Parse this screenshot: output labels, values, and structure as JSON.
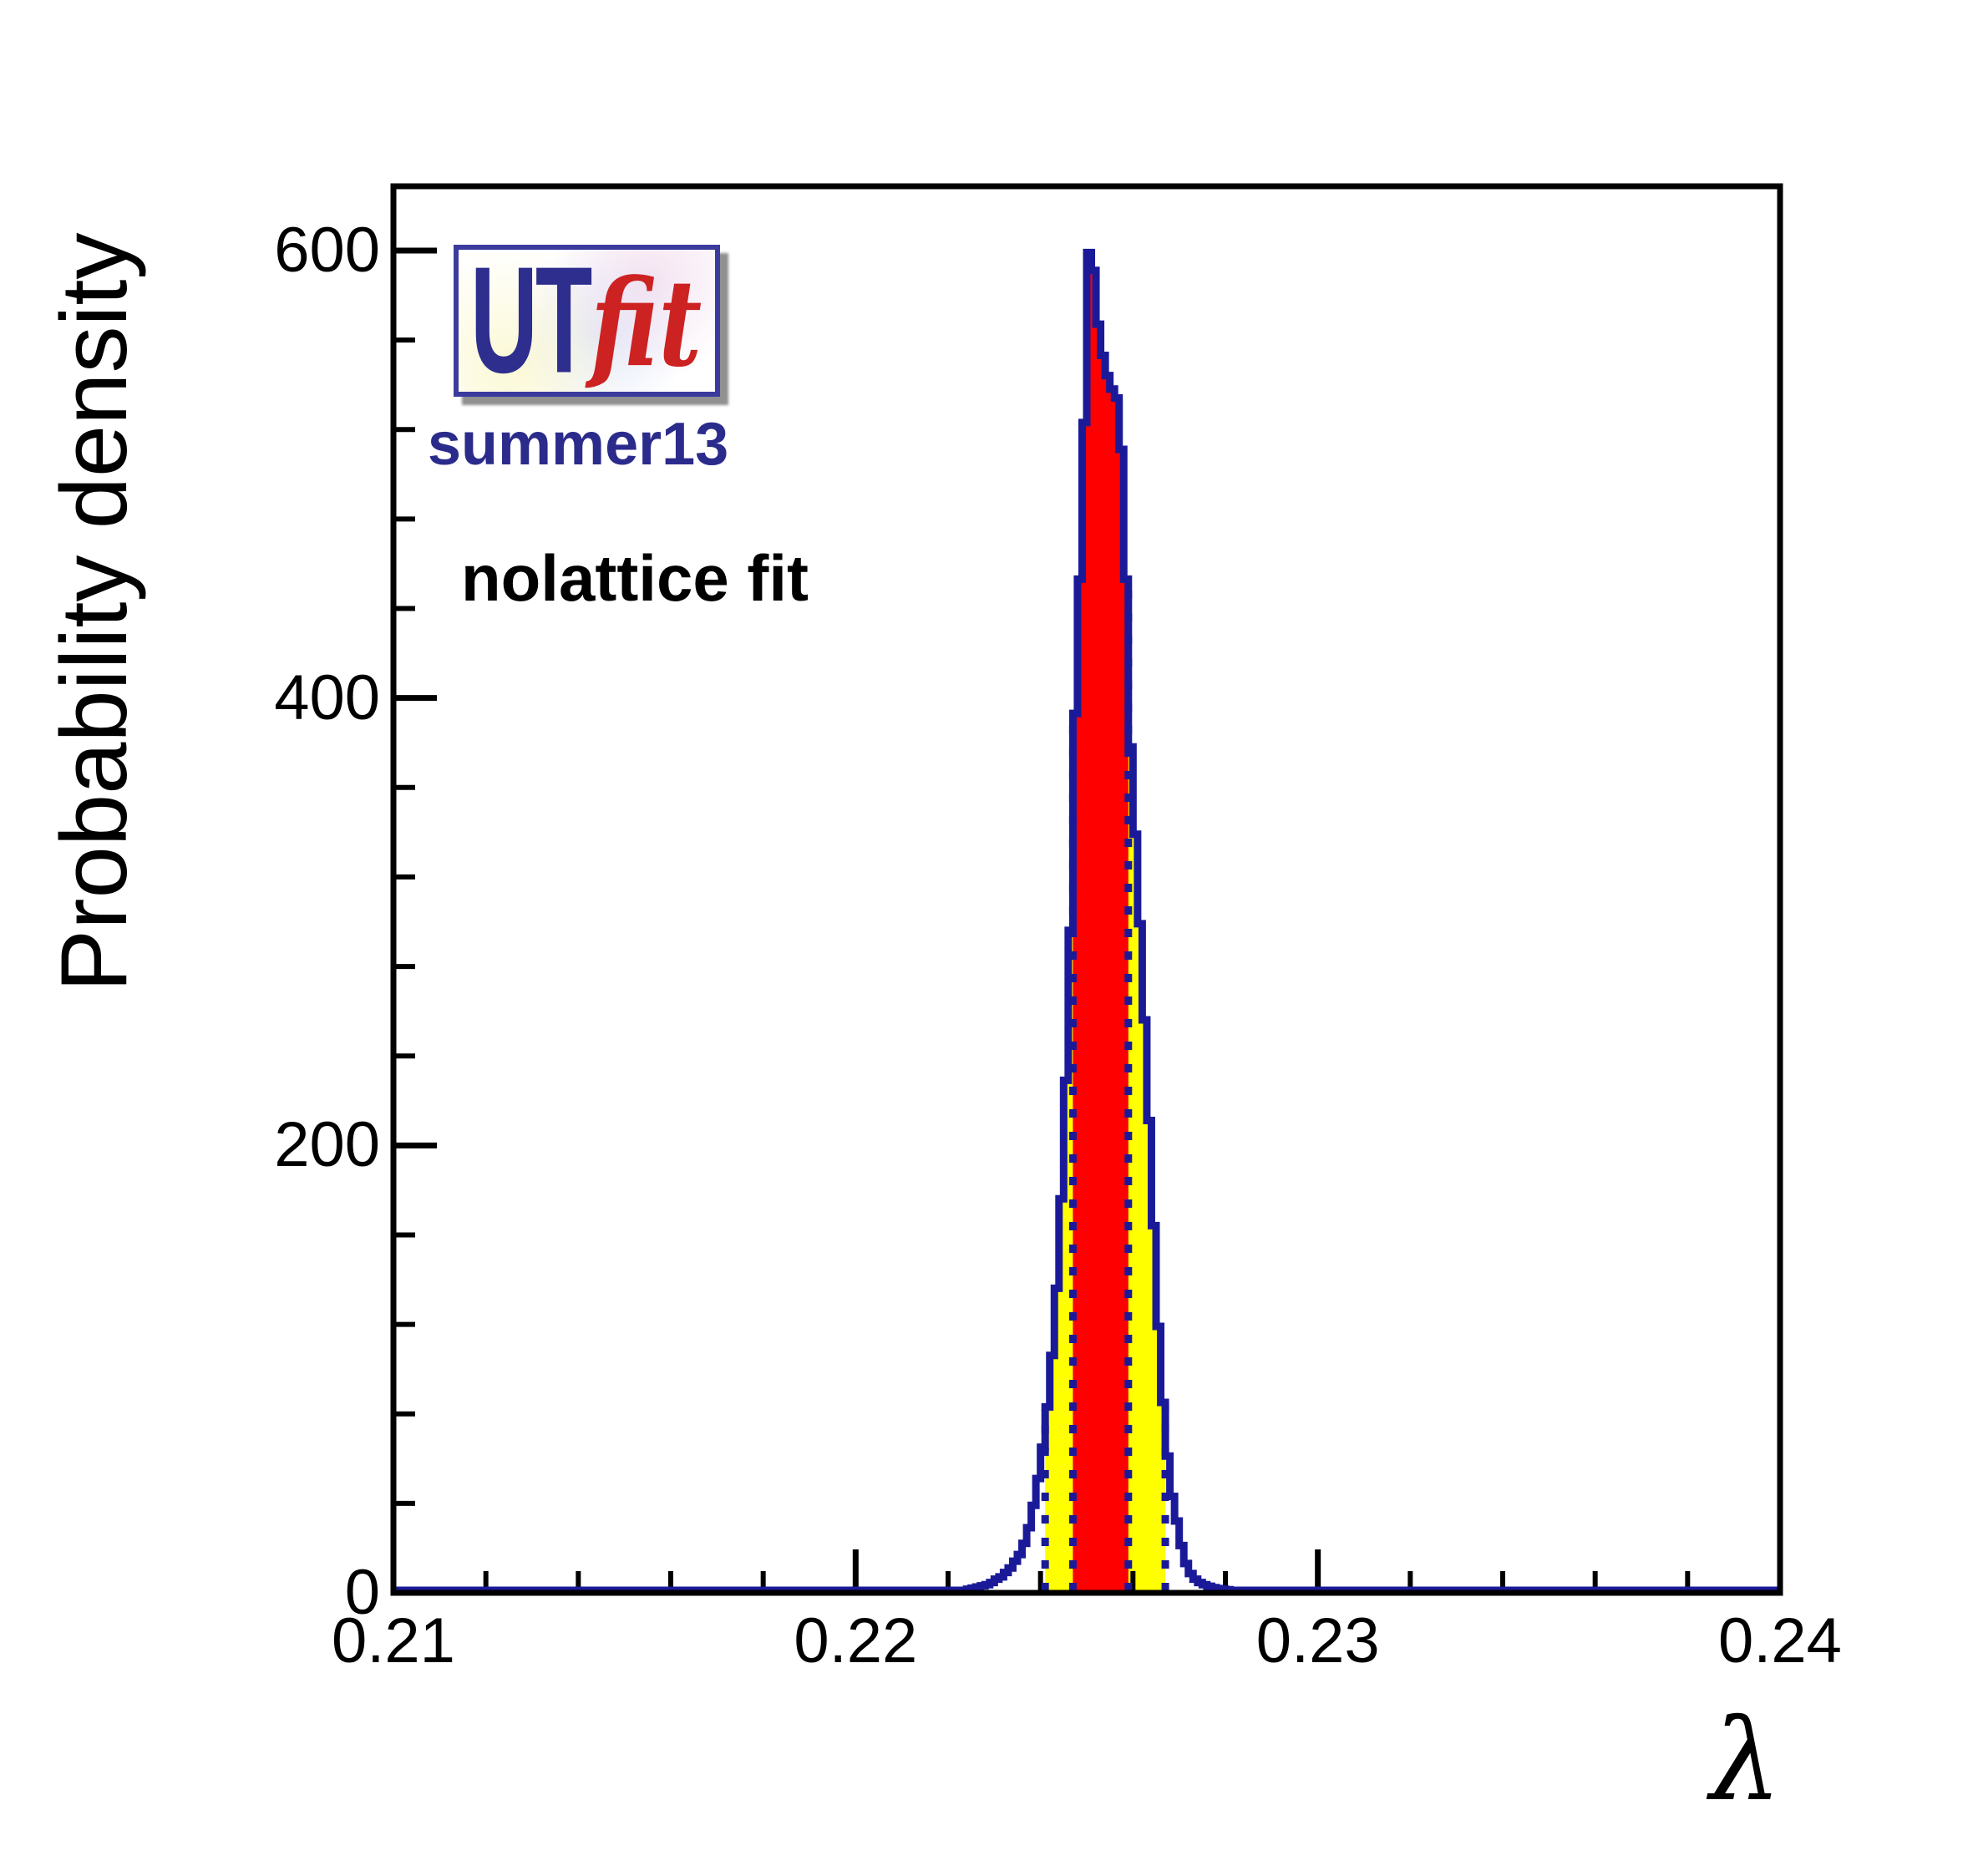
{
  "page": {
    "background": "#ffffff"
  },
  "logo": {
    "text_ut": "UT",
    "text_fit": "fit",
    "subtitle": "summer13"
  },
  "labels": {
    "fit_type": "nolattice fit"
  },
  "axes": {
    "x": {
      "title": "λ",
      "min": 0.21,
      "max": 0.24,
      "major_ticks": [
        0.21,
        0.22,
        0.23,
        0.24
      ],
      "major_tick_labels": [
        "0.21",
        "0.22",
        "0.23",
        "0.24"
      ],
      "minor_ticks": [
        0.212,
        0.214,
        0.216,
        0.218,
        0.222,
        0.224,
        0.226,
        0.228,
        0.232,
        0.234,
        0.236,
        0.238
      ]
    },
    "y": {
      "title": "Probability density",
      "min": 0,
      "max": 629,
      "major_ticks": [
        0,
        200,
        400,
        600
      ],
      "major_tick_labels": [
        "0",
        "200",
        "400",
        "600"
      ],
      "minor_ticks": [
        40,
        80,
        120,
        160,
        240,
        280,
        320,
        360,
        440,
        480,
        520,
        560
      ]
    }
  },
  "chart_data": {
    "type": "bar",
    "description": "Posterior probability density histogram of lambda from the UTfit summer13 nolattice fit; red band = 68% probability interval, yellow band = 95% probability interval, navy stepped outline = full histogram",
    "title": "",
    "xlabel": "λ",
    "ylabel": "Probability density",
    "xlim": [
      0.21,
      0.24
    ],
    "ylim": [
      0,
      629
    ],
    "grid": false,
    "legend": false,
    "bin_start": 0.2224,
    "bin_width": 0.0001,
    "values": [
      0.5,
      1,
      1.5,
      2,
      2.5,
      3.5,
      5,
      6,
      8,
      10,
      13,
      16,
      21,
      28,
      38,
      50,
      64,
      82,
      105,
      135,
      175,
      228,
      295,
      392,
      452,
      522,
      598,
      590,
      566,
      552,
      543,
      537,
      533,
      510,
      452,
      377,
      338,
      298,
      255,
      210,
      163,
      118,
      84,
      60,
      42,
      31,
      20,
      12,
      7.5,
      5,
      3.5,
      2.5,
      1.8,
      1.2,
      0.8,
      0.5,
      0.3
    ],
    "peak": {
      "x": 0.225,
      "y": 598
    },
    "intervals": {
      "ci68": [
        0.2247,
        0.2259
      ],
      "ci95": [
        0.2241,
        0.2267
      ]
    }
  },
  "colors": {
    "histogram_line": "#1a1a99",
    "ci68_fill": "#ff0000",
    "ci95_fill": "#ffff00",
    "axis": "#000000",
    "text": "#000000",
    "logo_navy": "#2e2e8f",
    "logo_red": "#cc2222",
    "logo_border": "#3b3b9e",
    "logo_shadow": "#9a9a9a",
    "annotation_navy": "#2b2b8c"
  }
}
